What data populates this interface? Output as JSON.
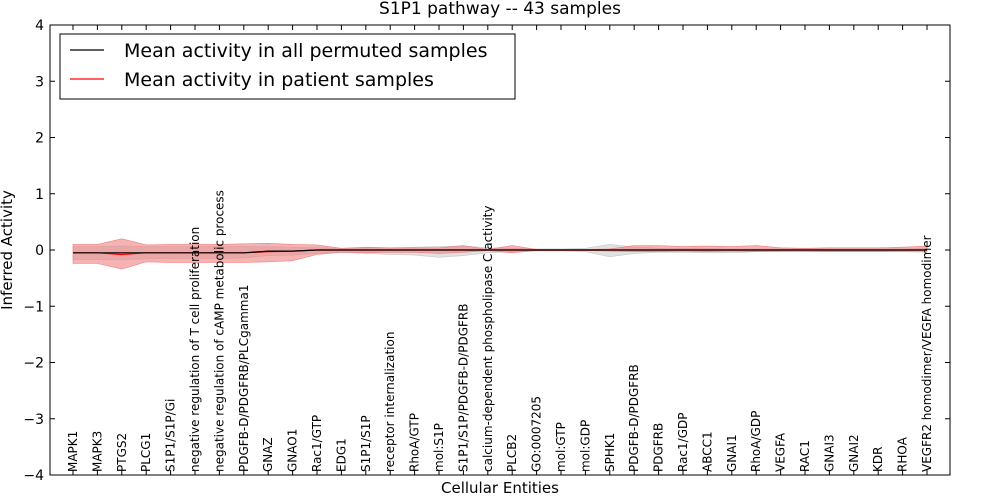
{
  "chart_data": {
    "type": "line",
    "title": "S1P1 pathway -- 43 samples",
    "xlabel": "Cellular Entities",
    "ylabel": "Inferred Activity",
    "ylim": [
      -4,
      4
    ],
    "yticks": [
      -4,
      -3,
      -2,
      -1,
      0,
      1,
      2,
      3,
      4
    ],
    "ytick_labels": [
      "−4",
      "−3",
      "−2",
      "−1",
      "0",
      "1",
      "2",
      "3",
      "4"
    ],
    "legend_position": "top-left",
    "categories": [
      "MAPK1",
      "MAPK3",
      "PTGS2",
      "PLCG1",
      "S1P1/S1P/Gi",
      "negative regulation of T cell proliferation",
      "negative regulation of cAMP metabolic process",
      "PDGFB-D/PDGFRB/PLCgamma1",
      "GNAZ",
      "GNAO1",
      "Rac1/GTP",
      "EDG1",
      "S1P1/S1P",
      "receptor internalization",
      "RhoA/GTP",
      "mol:S1P",
      "S1P1/S1P/PDGFB-D/PDGFRB",
      "calcium-dependent phospholipase C activity",
      "PLCB2",
      "GO:0007205",
      "mol:GTP",
      "mol:GDP",
      "SPHK1",
      "PDGFB-D/PDGFRB",
      "PDGFRB",
      "Rac1/GDP",
      "ABCC1",
      "GNAI1",
      "RhoA/GDP",
      "VEGFA",
      "RAC1",
      "GNAI3",
      "GNAI2",
      "KDR",
      "RHOA",
      "VEGFR2 homodimer/VEGFA homodimer"
    ],
    "series": [
      {
        "name": "Mean activity in all permuted samples",
        "color": "#000000",
        "band_color": "#c8c8c8",
        "values": [
          -0.05,
          -0.05,
          -0.05,
          -0.05,
          -0.05,
          -0.05,
          -0.05,
          -0.05,
          -0.02,
          -0.02,
          0.0,
          0.0,
          0.0,
          0.0,
          0.0,
          0.0,
          0.0,
          0.0,
          0.0,
          0.0,
          0.0,
          0.0,
          0.0,
          0.0,
          0.0,
          0.0,
          0.0,
          0.0,
          0.0,
          0.0,
          0.0,
          0.0,
          0.0,
          0.0,
          0.0,
          0.0
        ],
        "band_upper": [
          0.06,
          0.06,
          0.07,
          0.06,
          0.06,
          0.06,
          0.06,
          0.06,
          0.06,
          0.05,
          0.04,
          0.03,
          0.04,
          0.04,
          0.05,
          0.06,
          0.07,
          0.04,
          0.03,
          0.02,
          0.02,
          0.03,
          0.1,
          0.05,
          0.03,
          0.03,
          0.03,
          0.02,
          0.02,
          0.02,
          0.02,
          0.02,
          0.02,
          0.02,
          0.02,
          0.03
        ],
        "band_lower": [
          -0.17,
          -0.17,
          -0.17,
          -0.16,
          -0.15,
          -0.15,
          -0.15,
          -0.14,
          -0.1,
          -0.09,
          -0.06,
          -0.04,
          -0.06,
          -0.08,
          -0.09,
          -0.13,
          -0.1,
          -0.05,
          -0.03,
          -0.02,
          -0.02,
          -0.03,
          -0.12,
          -0.06,
          -0.04,
          -0.04,
          -0.05,
          -0.05,
          -0.03,
          -0.03,
          -0.03,
          -0.03,
          -0.03,
          -0.03,
          -0.03,
          -0.04
        ]
      },
      {
        "name": "Mean activity in patient samples",
        "color": "#ff0000",
        "band_color": "#f08080",
        "values": [
          -0.05,
          -0.05,
          -0.08,
          -0.05,
          -0.05,
          -0.05,
          -0.05,
          -0.05,
          -0.03,
          -0.02,
          0.0,
          0.0,
          0.0,
          0.0,
          0.0,
          0.0,
          0.0,
          0.0,
          0.0,
          0.0,
          0.0,
          0.0,
          0.0,
          0.0,
          0.0,
          0.0,
          0.0,
          0.0,
          0.0,
          0.0,
          0.0,
          0.0,
          0.0,
          0.0,
          0.0,
          0.0
        ],
        "band_upper": [
          0.1,
          0.1,
          0.2,
          0.09,
          0.1,
          0.1,
          0.1,
          0.11,
          0.12,
          0.1,
          0.09,
          0.03,
          0.05,
          0.04,
          0.04,
          0.04,
          0.08,
          0.01,
          0.08,
          0.01,
          0.01,
          0.01,
          0.02,
          0.08,
          0.08,
          0.06,
          0.07,
          0.06,
          0.08,
          0.04,
          0.03,
          0.04,
          0.04,
          0.04,
          0.05,
          0.07
        ],
        "band_lower": [
          -0.24,
          -0.24,
          -0.34,
          -0.21,
          -0.22,
          -0.22,
          -0.22,
          -0.22,
          -0.21,
          -0.19,
          -0.08,
          -0.04,
          -0.05,
          -0.04,
          -0.04,
          -0.06,
          -0.04,
          -0.01,
          -0.05,
          -0.01,
          -0.01,
          -0.01,
          -0.02,
          -0.03,
          -0.03,
          -0.02,
          -0.03,
          -0.02,
          -0.03,
          -0.02,
          -0.02,
          -0.03,
          -0.03,
          -0.03,
          -0.02,
          -0.02
        ]
      }
    ]
  }
}
